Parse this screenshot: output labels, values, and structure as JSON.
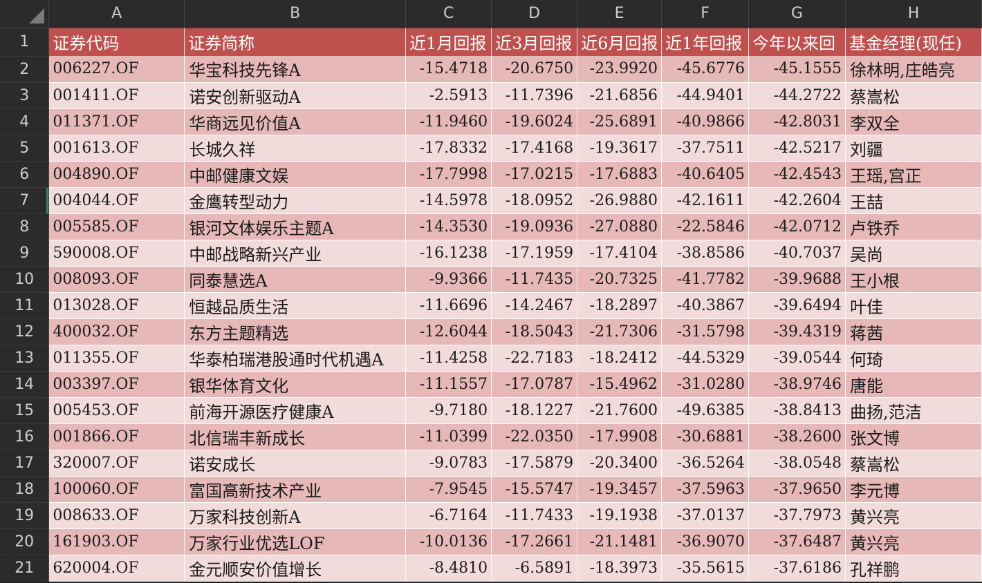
{
  "column_letters": [
    "A",
    "B",
    "C",
    "D",
    "E",
    "F",
    "G",
    "H"
  ],
  "header": [
    "证券代码",
    "证券简称",
    "近1月回报",
    "近3月回报",
    "近6月回报",
    "近1年回报",
    "今年以来回",
    "基金经理(现任)"
  ],
  "rows": [
    {
      "num": "1"
    },
    {
      "num": "2",
      "cells": [
        "006227.OF",
        "华宝科技先锋A",
        "-15.4718",
        "-20.6750",
        "-23.9920",
        "-45.6776",
        "-45.1555",
        "徐林明,庄皓亮"
      ]
    },
    {
      "num": "3",
      "cells": [
        "001411.OF",
        "诺安创新驱动A",
        "-2.5913",
        "-11.7396",
        "-21.6856",
        "-44.9401",
        "-44.2722",
        "蔡嵩松"
      ]
    },
    {
      "num": "4",
      "cells": [
        "011371.OF",
        "华商远见价值A",
        "-11.9460",
        "-19.6024",
        "-25.6891",
        "-40.9866",
        "-42.8031",
        "李双全"
      ]
    },
    {
      "num": "5",
      "cells": [
        "001613.OF",
        "长城久祥",
        "-17.8332",
        "-17.4168",
        "-19.3617",
        "-37.7511",
        "-42.5217",
        "刘疆"
      ]
    },
    {
      "num": "6",
      "cells": [
        "004890.OF",
        "中邮健康文娱",
        "-17.7998",
        "-17.0215",
        "-17.6883",
        "-40.6405",
        "-42.4543",
        "王瑶,宫正"
      ]
    },
    {
      "num": "7",
      "cells": [
        "004044.OF",
        "金鹰转型动力",
        "-14.5978",
        "-18.0952",
        "-26.9880",
        "-42.1611",
        "-42.2604",
        "王喆"
      ]
    },
    {
      "num": "8",
      "cells": [
        "005585.OF",
        "银河文体娱乐主题A",
        "-14.3530",
        "-19.0936",
        "-27.0880",
        "-22.5846",
        "-42.0712",
        "卢铁乔"
      ]
    },
    {
      "num": "9",
      "cells": [
        "590008.OF",
        "中邮战略新兴产业",
        "-16.1238",
        "-17.1959",
        "-17.4104",
        "-38.8586",
        "-40.7037",
        "吴尚"
      ]
    },
    {
      "num": "10",
      "cells": [
        "008093.OF",
        "同泰慧选A",
        "-9.9366",
        "-11.7435",
        "-20.7325",
        "-41.7782",
        "-39.9688",
        "王小根"
      ]
    },
    {
      "num": "11",
      "cells": [
        "013028.OF",
        "恒越品质生活",
        "-11.6696",
        "-14.2467",
        "-18.2897",
        "-40.3867",
        "-39.6494",
        "叶佳"
      ]
    },
    {
      "num": "12",
      "cells": [
        "400032.OF",
        "东方主题精选",
        "-12.6044",
        "-18.5043",
        "-21.7306",
        "-31.5798",
        "-39.4319",
        "蒋茜"
      ]
    },
    {
      "num": "13",
      "cells": [
        "011355.OF",
        "华泰柏瑞港股通时代机遇A",
        "-11.4258",
        "-22.7183",
        "-18.2412",
        "-44.5329",
        "-39.0544",
        "何琦"
      ]
    },
    {
      "num": "14",
      "cells": [
        "003397.OF",
        "银华体育文化",
        "-11.1557",
        "-17.0787",
        "-15.4962",
        "-31.0280",
        "-38.9746",
        "唐能"
      ]
    },
    {
      "num": "15",
      "cells": [
        "005453.OF",
        "前海开源医疗健康A",
        "-9.7180",
        "-18.1227",
        "-21.7600",
        "-49.6385",
        "-38.8413",
        "曲扬,范洁"
      ]
    },
    {
      "num": "16",
      "cells": [
        "001866.OF",
        "北信瑞丰新成长",
        "-11.0399",
        "-22.0350",
        "-17.9908",
        "-30.6881",
        "-38.2600",
        "张文博"
      ]
    },
    {
      "num": "17",
      "cells": [
        "320007.OF",
        "诺安成长",
        "-9.0783",
        "-17.5879",
        "-20.3400",
        "-36.5264",
        "-38.0548",
        "蔡嵩松"
      ]
    },
    {
      "num": "18",
      "cells": [
        "100060.OF",
        "富国高新技术产业",
        "-7.9545",
        "-15.5747",
        "-19.3457",
        "-37.5963",
        "-37.9650",
        "李元博"
      ]
    },
    {
      "num": "19",
      "cells": [
        "008633.OF",
        "万家科技创新A",
        "-6.7164",
        "-11.7433",
        "-19.1938",
        "-37.0137",
        "-37.7973",
        "黄兴亮"
      ]
    },
    {
      "num": "20",
      "cells": [
        "161903.OF",
        "万家行业优选LOF",
        "-10.0136",
        "-17.2661",
        "-21.1481",
        "-36.9070",
        "-37.6487",
        "黄兴亮"
      ]
    },
    {
      "num": "21",
      "cells": [
        "620004.OF",
        "金元顺安价值增长",
        "-8.4810",
        "-6.5891",
        "-18.3973",
        "-35.5615",
        "-37.6186",
        "孔祥鹏"
      ]
    }
  ],
  "colors": {
    "header_fill": "#c0504d",
    "band_odd": "#e6b8b7",
    "band_even": "#f2dcdb",
    "chrome": "#2b2b2b",
    "selection": "#2e8b57"
  }
}
